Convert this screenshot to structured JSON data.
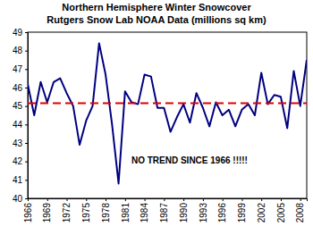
{
  "chart_data": {
    "type": "line",
    "title": "Northern Hemisphere Winter Snowcover",
    "subtitle": "Rutgers Snow Lab NOAA Data (millions sq km)",
    "annotations": [
      "NO TREND SINCE 1966 !!!!!"
    ],
    "x": [
      1966,
      1967,
      1968,
      1969,
      1970,
      1971,
      1972,
      1973,
      1974,
      1975,
      1976,
      1977,
      1978,
      1979,
      1980,
      1981,
      1982,
      1983,
      1984,
      1985,
      1986,
      1987,
      1988,
      1989,
      1990,
      1991,
      1992,
      1993,
      1994,
      1995,
      1996,
      1997,
      1998,
      1999,
      2000,
      2001,
      2002,
      2003,
      2004,
      2005,
      2006,
      2007,
      2008,
      2009
    ],
    "series": [
      {
        "color": "#000080",
        "line_style": "solid",
        "values": [
          46.2,
          44.5,
          46.3,
          45.2,
          46.3,
          46.5,
          45.7,
          45.0,
          42.9,
          44.2,
          45.0,
          48.4,
          46.7,
          44.0,
          40.8,
          45.8,
          45.2,
          45.1,
          46.7,
          46.6,
          44.9,
          44.9,
          43.6,
          44.4,
          45.1,
          44.1,
          45.7,
          44.9,
          43.9,
          45.2,
          44.5,
          44.8,
          43.9,
          44.8,
          45.1,
          44.5,
          46.8,
          45.1,
          45.6,
          45.5,
          43.8,
          46.9,
          45.0,
          47.5
        ]
      },
      {
        "color": "#e00000",
        "line_style": "dashed",
        "values": [
          45.15,
          45.15,
          45.15,
          45.15,
          45.15,
          45.15,
          45.15,
          45.15,
          45.15,
          45.15,
          45.15,
          45.15,
          45.15,
          45.15,
          45.15,
          45.15,
          45.15,
          45.15,
          45.15,
          45.15,
          45.15,
          45.15,
          45.15,
          45.15,
          45.15,
          45.15,
          45.15,
          45.15,
          45.15,
          45.15,
          45.15,
          45.15,
          45.15,
          45.15,
          45.15,
          45.15,
          45.15,
          45.15,
          45.15,
          45.15,
          45.15,
          45.15,
          45.15,
          45.15
        ]
      }
    ],
    "xlim": [
      1966,
      2009
    ],
    "xticks": [
      1966,
      1969,
      1972,
      1975,
      1978,
      1981,
      1984,
      1987,
      1990,
      1993,
      1996,
      1999,
      2002,
      2005,
      2008
    ],
    "ylim": [
      40,
      49
    ],
    "yticks": [
      40,
      41,
      42,
      43,
      44,
      45,
      46,
      47,
      48,
      49
    ],
    "grid": false
  }
}
